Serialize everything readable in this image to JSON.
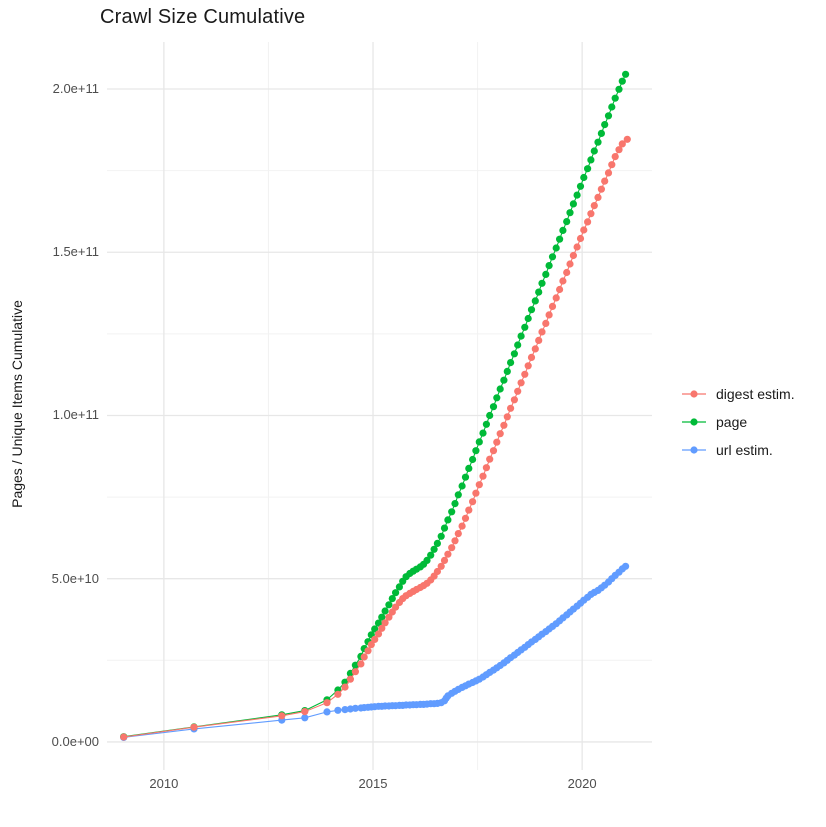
{
  "chart_data": {
    "type": "scatter",
    "title": "Crawl Size Cumulative",
    "xlabel": "",
    "ylabel": "Pages / Unique Items Cumulative",
    "legend_position": "right",
    "grid": true,
    "background": "#ffffff",
    "major_grid_color": "#e7e7e7",
    "minor_grid_color": "#f2f2f2",
    "xlim": [
      2008.64,
      2021.67
    ],
    "value_unit": 1000000000,
    "ylim_e9": [
      -8.6,
      214.4
    ],
    "x_ticks": [
      {
        "v": 2010,
        "label": "2010"
      },
      {
        "v": 2015,
        "label": "2015"
      },
      {
        "v": 2020,
        "label": "2020"
      }
    ],
    "x_minor": [
      2012.5,
      2017.5
    ],
    "y_ticks": [
      {
        "v": 0,
        "label": "0.0e+00"
      },
      {
        "v": 50,
        "label": "5.0e+10"
      },
      {
        "v": 100,
        "label": "1.0e+11"
      },
      {
        "v": 150,
        "label": "1.5e+11"
      },
      {
        "v": 200,
        "label": "2.0e+11"
      }
    ],
    "y_minor": [
      25,
      75,
      125,
      175
    ],
    "series": [
      {
        "name": "url estim.",
        "color": "#619CFF",
        "points": [
          [
            2009.04,
            1.4
          ],
          [
            2010.72,
            4.0
          ],
          [
            2012.82,
            6.7
          ],
          [
            2013.37,
            7.4
          ],
          [
            2013.9,
            9.2
          ],
          [
            2014.16,
            9.7
          ],
          [
            2014.33,
            9.9
          ],
          [
            2014.46,
            10.1
          ],
          [
            2014.58,
            10.3
          ],
          [
            2014.71,
            10.4
          ],
          [
            2014.79,
            10.5
          ],
          [
            2014.88,
            10.6
          ],
          [
            2014.96,
            10.7
          ],
          [
            2015.04,
            10.8
          ],
          [
            2015.13,
            10.9
          ],
          [
            2015.21,
            10.9
          ],
          [
            2015.29,
            11.0
          ],
          [
            2015.38,
            11.0
          ],
          [
            2015.46,
            11.1
          ],
          [
            2015.54,
            11.1
          ],
          [
            2015.63,
            11.2
          ],
          [
            2015.71,
            11.2
          ],
          [
            2015.79,
            11.3
          ],
          [
            2015.88,
            11.3
          ],
          [
            2015.96,
            11.4
          ],
          [
            2016.04,
            11.4
          ],
          [
            2016.13,
            11.5
          ],
          [
            2016.21,
            11.5
          ],
          [
            2016.29,
            11.6
          ],
          [
            2016.38,
            11.7
          ],
          [
            2016.46,
            11.7
          ],
          [
            2016.54,
            11.8
          ],
          [
            2016.63,
            12.0
          ],
          [
            2016.71,
            12.6
          ],
          [
            2016.75,
            13.4
          ],
          [
            2016.79,
            14.1
          ],
          [
            2016.88,
            14.9
          ],
          [
            2016.96,
            15.5
          ],
          [
            2017.04,
            16.1
          ],
          [
            2017.13,
            16.7
          ],
          [
            2017.21,
            17.2
          ],
          [
            2017.29,
            17.7
          ],
          [
            2017.38,
            18.2
          ],
          [
            2017.46,
            18.7
          ],
          [
            2017.54,
            19.2
          ],
          [
            2017.63,
            19.9
          ],
          [
            2017.71,
            20.6
          ],
          [
            2017.79,
            21.3
          ],
          [
            2017.88,
            22.0
          ],
          [
            2017.96,
            22.7
          ],
          [
            2018.04,
            23.4
          ],
          [
            2018.13,
            24.2
          ],
          [
            2018.21,
            25.0
          ],
          [
            2018.29,
            25.8
          ],
          [
            2018.38,
            26.6
          ],
          [
            2018.46,
            27.4
          ],
          [
            2018.54,
            28.2
          ],
          [
            2018.63,
            29.0
          ],
          [
            2018.71,
            29.8
          ],
          [
            2018.79,
            30.6
          ],
          [
            2018.88,
            31.4
          ],
          [
            2018.96,
            32.2
          ],
          [
            2019.04,
            33.0
          ],
          [
            2019.13,
            33.8
          ],
          [
            2019.21,
            34.6
          ],
          [
            2019.29,
            35.4
          ],
          [
            2019.38,
            36.2
          ],
          [
            2019.46,
            37.1
          ],
          [
            2019.54,
            38.0
          ],
          [
            2019.63,
            38.9
          ],
          [
            2019.71,
            39.8
          ],
          [
            2019.79,
            40.7
          ],
          [
            2019.88,
            41.6
          ],
          [
            2019.96,
            42.5
          ],
          [
            2020.04,
            43.4
          ],
          [
            2020.13,
            44.3
          ],
          [
            2020.21,
            45.2
          ],
          [
            2020.29,
            45.8
          ],
          [
            2020.38,
            46.4
          ],
          [
            2020.46,
            47.2
          ],
          [
            2020.54,
            48.0
          ],
          [
            2020.63,
            49.0
          ],
          [
            2020.71,
            50.0
          ],
          [
            2020.79,
            51.0
          ],
          [
            2020.88,
            52.0
          ],
          [
            2020.96,
            53.0
          ],
          [
            2021.04,
            53.8
          ]
        ]
      },
      {
        "name": "page",
        "color": "#00BA38",
        "points": [
          [
            2009.04,
            1.6
          ],
          [
            2010.72,
            4.6
          ],
          [
            2012.82,
            8.3
          ],
          [
            2013.37,
            9.6
          ],
          [
            2013.9,
            12.9
          ],
          [
            2014.16,
            15.9
          ],
          [
            2014.33,
            18.3
          ],
          [
            2014.46,
            21.0
          ],
          [
            2014.58,
            23.5
          ],
          [
            2014.71,
            26.2
          ],
          [
            2014.79,
            28.6
          ],
          [
            2014.88,
            30.7
          ],
          [
            2014.96,
            32.8
          ],
          [
            2015.04,
            34.6
          ],
          [
            2015.13,
            36.4
          ],
          [
            2015.21,
            38.2
          ],
          [
            2015.29,
            40.1
          ],
          [
            2015.38,
            42.0
          ],
          [
            2015.46,
            43.9
          ],
          [
            2015.54,
            45.7
          ],
          [
            2015.63,
            47.5
          ],
          [
            2015.71,
            49.2
          ],
          [
            2015.79,
            50.6
          ],
          [
            2015.88,
            51.6
          ],
          [
            2015.96,
            52.3
          ],
          [
            2016.04,
            52.9
          ],
          [
            2016.13,
            53.6
          ],
          [
            2016.21,
            54.4
          ],
          [
            2016.29,
            55.6
          ],
          [
            2016.38,
            57.2
          ],
          [
            2016.46,
            59.0
          ],
          [
            2016.54,
            60.8
          ],
          [
            2016.63,
            63.0
          ],
          [
            2016.71,
            65.5
          ],
          [
            2016.79,
            68.0
          ],
          [
            2016.88,
            70.5
          ],
          [
            2016.96,
            73.0
          ],
          [
            2017.04,
            75.7
          ],
          [
            2017.13,
            78.4
          ],
          [
            2017.21,
            81.1
          ],
          [
            2017.29,
            83.8
          ],
          [
            2017.38,
            86.5
          ],
          [
            2017.46,
            89.2
          ],
          [
            2017.54,
            91.9
          ],
          [
            2017.63,
            94.6
          ],
          [
            2017.71,
            97.3
          ],
          [
            2017.79,
            100.0
          ],
          [
            2017.88,
            102.7
          ],
          [
            2017.96,
            105.4
          ],
          [
            2018.04,
            108.1
          ],
          [
            2018.13,
            110.8
          ],
          [
            2018.21,
            113.5
          ],
          [
            2018.29,
            116.2
          ],
          [
            2018.38,
            118.9
          ],
          [
            2018.46,
            121.6
          ],
          [
            2018.54,
            124.3
          ],
          [
            2018.63,
            127.0
          ],
          [
            2018.71,
            129.7
          ],
          [
            2018.79,
            132.4
          ],
          [
            2018.88,
            135.1
          ],
          [
            2018.96,
            137.8
          ],
          [
            2019.04,
            140.5
          ],
          [
            2019.13,
            143.2
          ],
          [
            2019.21,
            145.9
          ],
          [
            2019.29,
            148.6
          ],
          [
            2019.38,
            151.3
          ],
          [
            2019.46,
            154.0
          ],
          [
            2019.54,
            156.7
          ],
          [
            2019.63,
            159.4
          ],
          [
            2019.71,
            162.1
          ],
          [
            2019.79,
            164.8
          ],
          [
            2019.88,
            167.5
          ],
          [
            2019.96,
            170.2
          ],
          [
            2020.04,
            172.9
          ],
          [
            2020.13,
            175.6
          ],
          [
            2020.21,
            178.3
          ],
          [
            2020.29,
            181.0
          ],
          [
            2020.38,
            183.7
          ],
          [
            2020.46,
            186.4
          ],
          [
            2020.54,
            189.1
          ],
          [
            2020.63,
            191.8
          ],
          [
            2020.71,
            194.5
          ],
          [
            2020.79,
            197.2
          ],
          [
            2020.88,
            199.9
          ],
          [
            2020.96,
            202.4
          ],
          [
            2021.04,
            204.5
          ]
        ]
      },
      {
        "name": "digest estim.",
        "color": "#F8766D",
        "points": [
          [
            2009.04,
            1.5
          ],
          [
            2010.72,
            4.5
          ],
          [
            2012.82,
            8.0
          ],
          [
            2013.37,
            9.3
          ],
          [
            2013.9,
            12.0
          ],
          [
            2014.16,
            14.6
          ],
          [
            2014.33,
            16.8
          ],
          [
            2014.46,
            19.2
          ],
          [
            2014.58,
            21.5
          ],
          [
            2014.71,
            23.9
          ],
          [
            2014.79,
            26.0
          ],
          [
            2014.88,
            27.9
          ],
          [
            2014.96,
            29.8
          ],
          [
            2015.04,
            31.4
          ],
          [
            2015.13,
            33.1
          ],
          [
            2015.21,
            34.8
          ],
          [
            2015.29,
            36.5
          ],
          [
            2015.38,
            38.2
          ],
          [
            2015.46,
            39.8
          ],
          [
            2015.54,
            41.3
          ],
          [
            2015.63,
            42.7
          ],
          [
            2015.71,
            43.9
          ],
          [
            2015.79,
            44.8
          ],
          [
            2015.88,
            45.5
          ],
          [
            2015.96,
            46.1
          ],
          [
            2016.04,
            46.7
          ],
          [
            2016.13,
            47.3
          ],
          [
            2016.21,
            47.9
          ],
          [
            2016.29,
            48.6
          ],
          [
            2016.38,
            49.6
          ],
          [
            2016.46,
            50.8
          ],
          [
            2016.54,
            52.2
          ],
          [
            2016.63,
            53.8
          ],
          [
            2016.71,
            55.6
          ],
          [
            2016.79,
            57.5
          ],
          [
            2016.88,
            59.5
          ],
          [
            2016.96,
            61.6
          ],
          [
            2017.04,
            63.8
          ],
          [
            2017.13,
            66.1
          ],
          [
            2017.21,
            68.5
          ],
          [
            2017.29,
            71.0
          ],
          [
            2017.38,
            73.6
          ],
          [
            2017.46,
            76.2
          ],
          [
            2017.54,
            78.8
          ],
          [
            2017.63,
            81.4
          ],
          [
            2017.71,
            84.0
          ],
          [
            2017.79,
            86.6
          ],
          [
            2017.88,
            89.2
          ],
          [
            2017.96,
            91.8
          ],
          [
            2018.04,
            94.4
          ],
          [
            2018.13,
            97.0
          ],
          [
            2018.21,
            99.6
          ],
          [
            2018.29,
            102.2
          ],
          [
            2018.38,
            104.8
          ],
          [
            2018.46,
            107.4
          ],
          [
            2018.54,
            110.0
          ],
          [
            2018.63,
            112.6
          ],
          [
            2018.71,
            115.2
          ],
          [
            2018.79,
            117.8
          ],
          [
            2018.88,
            120.4
          ],
          [
            2018.96,
            123.0
          ],
          [
            2019.04,
            125.6
          ],
          [
            2019.13,
            128.2
          ],
          [
            2019.21,
            130.8
          ],
          [
            2019.29,
            133.4
          ],
          [
            2019.38,
            136.0
          ],
          [
            2019.46,
            138.6
          ],
          [
            2019.54,
            141.2
          ],
          [
            2019.63,
            143.8
          ],
          [
            2019.71,
            146.4
          ],
          [
            2019.79,
            149.0
          ],
          [
            2019.88,
            151.6
          ],
          [
            2019.96,
            154.2
          ],
          [
            2020.04,
            156.8
          ],
          [
            2020.13,
            159.3
          ],
          [
            2020.21,
            161.8
          ],
          [
            2020.29,
            164.3
          ],
          [
            2020.38,
            166.8
          ],
          [
            2020.46,
            169.3
          ],
          [
            2020.54,
            171.8
          ],
          [
            2020.63,
            174.3
          ],
          [
            2020.71,
            176.8
          ],
          [
            2020.79,
            179.3
          ],
          [
            2020.88,
            181.4
          ],
          [
            2020.96,
            183.2
          ],
          [
            2021.08,
            184.6
          ]
        ]
      }
    ]
  },
  "legend": {
    "items": [
      {
        "label": "digest estim.",
        "color": "#F8766D"
      },
      {
        "label": "page",
        "color": "#00BA38"
      },
      {
        "label": "url estim.",
        "color": "#619CFF"
      }
    ]
  }
}
